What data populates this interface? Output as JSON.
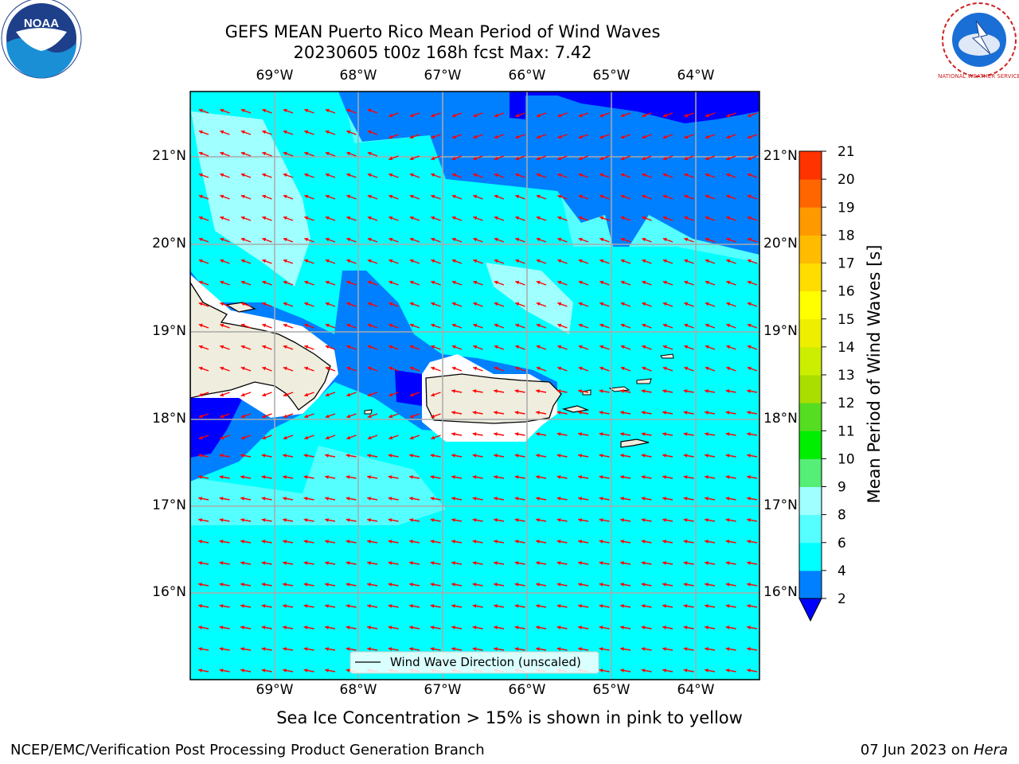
{
  "header": {
    "title_line1": "GEFS MEAN Puerto Rico Mean Period of Wind Waves",
    "title_line2": "20230605 t00z 168h fcst   Max: 7.42",
    "left_logo": "noaa-logo",
    "right_logo": "nws-logo",
    "noaa_logo_text": "NOAA",
    "nws_logo_text": "NATIONAL WEATHER SERVICE"
  },
  "map": {
    "lon_labels": [
      "69°W",
      "68°W",
      "67°W",
      "66°W",
      "65°W",
      "64°W"
    ],
    "lat_labels": [
      "21°N",
      "20°N",
      "19°N",
      "18°N",
      "17°N",
      "16°N"
    ],
    "legend_label": "Wind Wave Direction (unscaled)",
    "colors": {
      "lt_cyan": "#55ffff",
      "cyan": "#00ffff",
      "blue": "#0080ff",
      "dark_blue": "#0000ff",
      "pale": "#a0ffff",
      "land": "#efedde",
      "arrow": "#ff0000"
    }
  },
  "colorbar": {
    "title": "Mean Period of Wind Waves [s]",
    "ticks": [
      "2",
      "4",
      "6",
      "8",
      "9",
      "10",
      "11",
      "12",
      "13",
      "14",
      "15",
      "16",
      "17",
      "18",
      "19",
      "20",
      "21"
    ],
    "colors": [
      "#0080ff",
      "#00ffff",
      "#55ffff",
      "#a0ffff",
      "#55ee77",
      "#00ee00",
      "#55dd22",
      "#aadd00",
      "#ccee00",
      "#eeee00",
      "#ffff00",
      "#ffdd00",
      "#ffbb00",
      "#ff9900",
      "#ff6600",
      "#ff3300",
      "#ff0000"
    ],
    "under_color": "#0000ff"
  },
  "footer": {
    "sea_ice_note": "Sea Ice Concentration > 15% is shown in pink to yellow",
    "branch": "NCEP/EMC/Verification Post Processing Product Generation Branch",
    "date": "07 Jun 2023 on ",
    "host": "Hera"
  }
}
